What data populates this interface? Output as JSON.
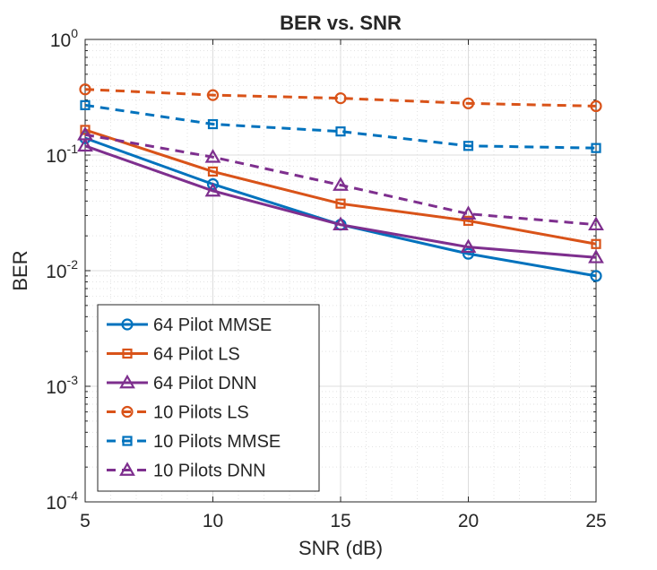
{
  "chart_data": {
    "type": "line",
    "title": "BER vs. SNR",
    "xlabel": "SNR (dB)",
    "ylabel": "BER",
    "x_scale": "linear",
    "y_scale": "log",
    "xlim": [
      5,
      25
    ],
    "ylim": [
      0.0001,
      1
    ],
    "grid": true,
    "minor_grid": true,
    "legend_position": "bottom-left",
    "x_ticks": [
      5,
      10,
      15,
      20,
      25
    ],
    "x_tick_labels": [
      "5",
      "10",
      "15",
      "20",
      "25"
    ],
    "y_ticks": [
      0.0001,
      0.001,
      0.01,
      0.1,
      1
    ],
    "y_tick_labels": [
      {
        "base": "10",
        "exp": "-4"
      },
      {
        "base": "10",
        "exp": "-3"
      },
      {
        "base": "10",
        "exp": "-2"
      },
      {
        "base": "10",
        "exp": "-1"
      },
      {
        "base": "10",
        "exp": "0"
      }
    ],
    "x": [
      5,
      10,
      15,
      20,
      25
    ],
    "series": [
      {
        "name": "64 Pilot MMSE",
        "color": "#0072BD",
        "line_style": "solid",
        "marker": "circle",
        "values": [
          0.14,
          0.056,
          0.025,
          0.014,
          0.009
        ]
      },
      {
        "name": "64 Pilot LS",
        "color": "#D95319",
        "line_style": "solid",
        "marker": "square",
        "values": [
          0.165,
          0.072,
          0.038,
          0.027,
          0.017
        ]
      },
      {
        "name": "64 Pilot DNN",
        "color": "#7E2F8E",
        "line_style": "solid",
        "marker": "triangle",
        "values": [
          0.12,
          0.049,
          0.025,
          0.016,
          0.013
        ]
      },
      {
        "name": "10 Pilots LS",
        "color": "#D95319",
        "line_style": "dashed",
        "marker": "circle",
        "values": [
          0.37,
          0.33,
          0.31,
          0.28,
          0.265
        ]
      },
      {
        "name": "10 Pilots MMSE",
        "color": "#0072BD",
        "line_style": "dashed",
        "marker": "square",
        "values": [
          0.27,
          0.185,
          0.16,
          0.12,
          0.115
        ]
      },
      {
        "name": "10 Pilots DNN",
        "color": "#7E2F8E",
        "line_style": "dashed",
        "marker": "triangle",
        "values": [
          0.15,
          0.096,
          0.055,
          0.031,
          0.025
        ]
      }
    ]
  }
}
